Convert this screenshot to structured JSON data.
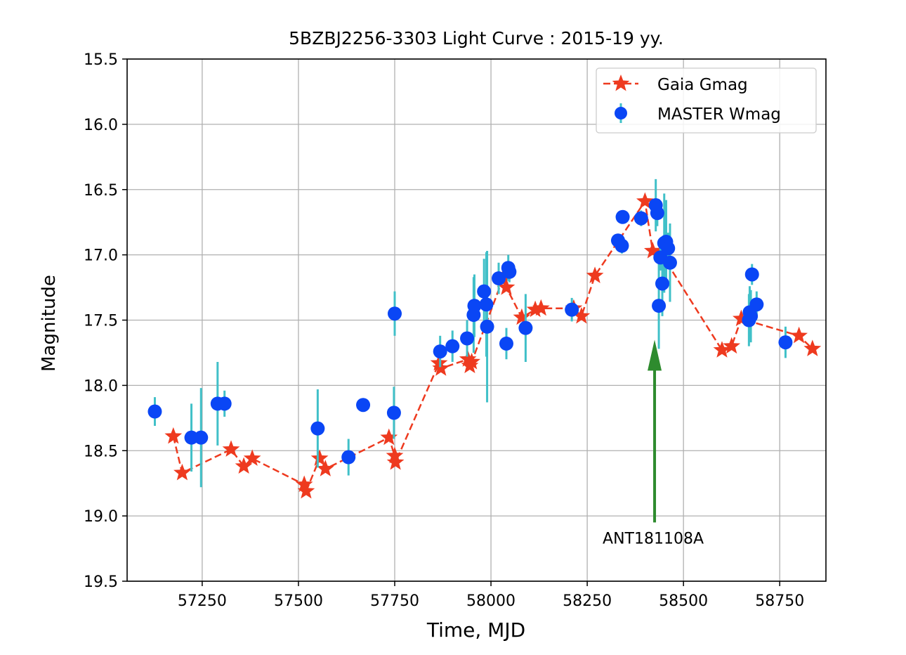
{
  "chart_data": {
    "type": "scatter",
    "title": "5BZBJ2256-3303 Light Curve : 2015-19 yy.",
    "xlabel": "Time, MJD",
    "ylabel": "Magnitude",
    "xlim": [
      57055,
      58870
    ],
    "ylim": [
      15.5,
      19.5
    ],
    "y_inverted": true,
    "grid": true,
    "xticks": [
      57250,
      57500,
      57750,
      58000,
      58250,
      58500,
      58750
    ],
    "xtick_labels": [
      "57250",
      "57500",
      "57750",
      "58000",
      "58250",
      "58500",
      "58750"
    ],
    "yticks": [
      15.5,
      16.0,
      16.5,
      17.0,
      17.5,
      18.0,
      18.5,
      19.0,
      19.5
    ],
    "ytick_labels": [
      "15.5",
      "16.0",
      "16.5",
      "17.0",
      "17.5",
      "18.0",
      "18.5",
      "19.0",
      "19.5"
    ],
    "legend_position": "top-right",
    "series": [
      {
        "name": "Gaia Gmag",
        "marker": "star",
        "line": "dashed",
        "color": "#ee3a1f",
        "x": [
          57175,
          57198,
          57325,
          57358,
          57380,
          57515,
          57520,
          57555,
          57570,
          57735,
          57750,
          57752,
          57865,
          57870,
          57940,
          57945,
          57950,
          58030,
          58040,
          58080,
          58115,
          58130,
          58215,
          58235,
          58270,
          58400,
          58420,
          58440,
          58600,
          58625,
          58650,
          58800,
          58835
        ],
        "y": [
          18.39,
          18.67,
          18.49,
          18.62,
          18.56,
          18.76,
          18.81,
          18.56,
          18.64,
          18.4,
          18.54,
          18.59,
          17.83,
          17.87,
          17.8,
          17.85,
          17.82,
          17.19,
          17.25,
          17.48,
          17.42,
          17.41,
          17.41,
          17.47,
          17.16,
          16.59,
          16.97,
          16.98,
          17.73,
          17.7,
          17.49,
          17.62,
          17.72
        ]
      },
      {
        "name": "MASTER Wmag",
        "marker": "circle",
        "color": "#0a46f5",
        "error_color": "#40c0c8",
        "x": [
          57127,
          57222,
          57247,
          57290,
          57308,
          57550,
          57630,
          57668,
          57748,
          57750,
          57868,
          57900,
          57938,
          57955,
          57957,
          57982,
          57988,
          57990,
          58020,
          58040,
          58045,
          58048,
          58090,
          58210,
          58330,
          58340,
          58342,
          58390,
          58428,
          58432,
          58436,
          58440,
          58445,
          58450,
          58455,
          58460,
          58465,
          58670,
          58672,
          58675,
          58678,
          58690,
          58765
        ],
        "y": [
          18.2,
          18.4,
          18.4,
          18.14,
          18.14,
          18.33,
          18.55,
          18.15,
          18.21,
          17.45,
          17.74,
          17.7,
          17.64,
          17.46,
          17.39,
          17.28,
          17.38,
          17.55,
          17.18,
          17.68,
          17.1,
          17.13,
          17.56,
          17.42,
          16.89,
          16.93,
          16.71,
          16.72,
          16.62,
          16.68,
          17.39,
          17.02,
          17.22,
          16.91,
          16.9,
          16.95,
          17.06,
          17.5,
          17.44,
          17.47,
          17.15,
          17.38,
          17.67
        ],
        "yerr": [
          0.11,
          0.26,
          0.38,
          0.32,
          0.1,
          0.3,
          0.14,
          0.05,
          0.2,
          0.17,
          0.12,
          0.12,
          0.14,
          0.29,
          0.24,
          0.25,
          0.4,
          0.58,
          0.12,
          0.12,
          0.1,
          0.08,
          0.26,
          0.09,
          0.04,
          0.06,
          0.05,
          0.06,
          0.2,
          0.1,
          0.33,
          0.1,
          0.25,
          0.38,
          0.32,
          0.12,
          0.3,
          0.2,
          0.2,
          0.2,
          0.08,
          0.1,
          0.12
        ]
      }
    ],
    "annotation": {
      "text": "ANT181108A",
      "x": 58425,
      "arrow_tip_y": 17.65,
      "arrow_tail_y": 19.05,
      "color": "#2e8b2e"
    }
  }
}
